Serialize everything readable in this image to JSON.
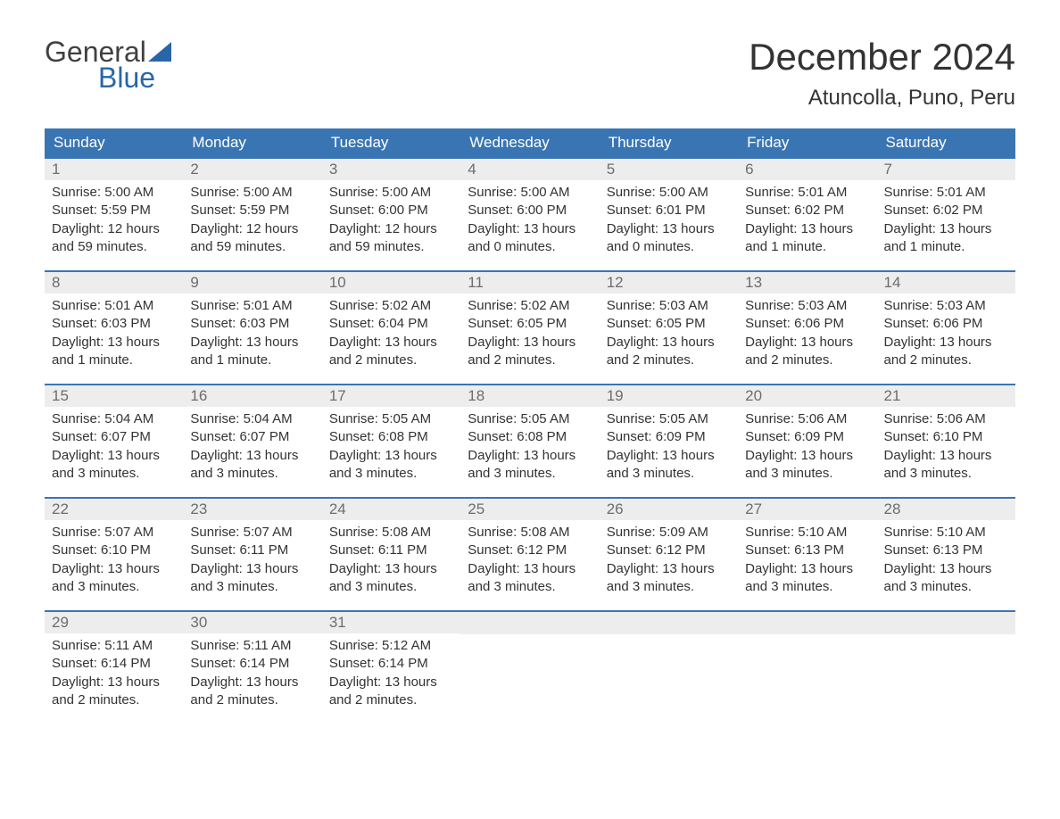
{
  "logo": {
    "text_general": "General",
    "text_blue": "Blue"
  },
  "header": {
    "month_title": "December 2024",
    "location": "Atuncolla, Puno, Peru"
  },
  "colors": {
    "header_bg": "#3a75b3",
    "day_number_bg": "#ededed",
    "text": "#333333",
    "day_number_text": "#6d6d6d",
    "logo_blue": "#2966a8",
    "logo_general": "#404040"
  },
  "weekdays": [
    "Sunday",
    "Monday",
    "Tuesday",
    "Wednesday",
    "Thursday",
    "Friday",
    "Saturday"
  ],
  "weeks": [
    [
      {
        "day": "1",
        "sunrise": "Sunrise: 5:00 AM",
        "sunset": "Sunset: 5:59 PM",
        "daylight1": "Daylight: 12 hours",
        "daylight2": "and 59 minutes."
      },
      {
        "day": "2",
        "sunrise": "Sunrise: 5:00 AM",
        "sunset": "Sunset: 5:59 PM",
        "daylight1": "Daylight: 12 hours",
        "daylight2": "and 59 minutes."
      },
      {
        "day": "3",
        "sunrise": "Sunrise: 5:00 AM",
        "sunset": "Sunset: 6:00 PM",
        "daylight1": "Daylight: 12 hours",
        "daylight2": "and 59 minutes."
      },
      {
        "day": "4",
        "sunrise": "Sunrise: 5:00 AM",
        "sunset": "Sunset: 6:00 PM",
        "daylight1": "Daylight: 13 hours",
        "daylight2": "and 0 minutes."
      },
      {
        "day": "5",
        "sunrise": "Sunrise: 5:00 AM",
        "sunset": "Sunset: 6:01 PM",
        "daylight1": "Daylight: 13 hours",
        "daylight2": "and 0 minutes."
      },
      {
        "day": "6",
        "sunrise": "Sunrise: 5:01 AM",
        "sunset": "Sunset: 6:02 PM",
        "daylight1": "Daylight: 13 hours",
        "daylight2": "and 1 minute."
      },
      {
        "day": "7",
        "sunrise": "Sunrise: 5:01 AM",
        "sunset": "Sunset: 6:02 PM",
        "daylight1": "Daylight: 13 hours",
        "daylight2": "and 1 minute."
      }
    ],
    [
      {
        "day": "8",
        "sunrise": "Sunrise: 5:01 AM",
        "sunset": "Sunset: 6:03 PM",
        "daylight1": "Daylight: 13 hours",
        "daylight2": "and 1 minute."
      },
      {
        "day": "9",
        "sunrise": "Sunrise: 5:01 AM",
        "sunset": "Sunset: 6:03 PM",
        "daylight1": "Daylight: 13 hours",
        "daylight2": "and 1 minute."
      },
      {
        "day": "10",
        "sunrise": "Sunrise: 5:02 AM",
        "sunset": "Sunset: 6:04 PM",
        "daylight1": "Daylight: 13 hours",
        "daylight2": "and 2 minutes."
      },
      {
        "day": "11",
        "sunrise": "Sunrise: 5:02 AM",
        "sunset": "Sunset: 6:05 PM",
        "daylight1": "Daylight: 13 hours",
        "daylight2": "and 2 minutes."
      },
      {
        "day": "12",
        "sunrise": "Sunrise: 5:03 AM",
        "sunset": "Sunset: 6:05 PM",
        "daylight1": "Daylight: 13 hours",
        "daylight2": "and 2 minutes."
      },
      {
        "day": "13",
        "sunrise": "Sunrise: 5:03 AM",
        "sunset": "Sunset: 6:06 PM",
        "daylight1": "Daylight: 13 hours",
        "daylight2": "and 2 minutes."
      },
      {
        "day": "14",
        "sunrise": "Sunrise: 5:03 AM",
        "sunset": "Sunset: 6:06 PM",
        "daylight1": "Daylight: 13 hours",
        "daylight2": "and 2 minutes."
      }
    ],
    [
      {
        "day": "15",
        "sunrise": "Sunrise: 5:04 AM",
        "sunset": "Sunset: 6:07 PM",
        "daylight1": "Daylight: 13 hours",
        "daylight2": "and 3 minutes."
      },
      {
        "day": "16",
        "sunrise": "Sunrise: 5:04 AM",
        "sunset": "Sunset: 6:07 PM",
        "daylight1": "Daylight: 13 hours",
        "daylight2": "and 3 minutes."
      },
      {
        "day": "17",
        "sunrise": "Sunrise: 5:05 AM",
        "sunset": "Sunset: 6:08 PM",
        "daylight1": "Daylight: 13 hours",
        "daylight2": "and 3 minutes."
      },
      {
        "day": "18",
        "sunrise": "Sunrise: 5:05 AM",
        "sunset": "Sunset: 6:08 PM",
        "daylight1": "Daylight: 13 hours",
        "daylight2": "and 3 minutes."
      },
      {
        "day": "19",
        "sunrise": "Sunrise: 5:05 AM",
        "sunset": "Sunset: 6:09 PM",
        "daylight1": "Daylight: 13 hours",
        "daylight2": "and 3 minutes."
      },
      {
        "day": "20",
        "sunrise": "Sunrise: 5:06 AM",
        "sunset": "Sunset: 6:09 PM",
        "daylight1": "Daylight: 13 hours",
        "daylight2": "and 3 minutes."
      },
      {
        "day": "21",
        "sunrise": "Sunrise: 5:06 AM",
        "sunset": "Sunset: 6:10 PM",
        "daylight1": "Daylight: 13 hours",
        "daylight2": "and 3 minutes."
      }
    ],
    [
      {
        "day": "22",
        "sunrise": "Sunrise: 5:07 AM",
        "sunset": "Sunset: 6:10 PM",
        "daylight1": "Daylight: 13 hours",
        "daylight2": "and 3 minutes."
      },
      {
        "day": "23",
        "sunrise": "Sunrise: 5:07 AM",
        "sunset": "Sunset: 6:11 PM",
        "daylight1": "Daylight: 13 hours",
        "daylight2": "and 3 minutes."
      },
      {
        "day": "24",
        "sunrise": "Sunrise: 5:08 AM",
        "sunset": "Sunset: 6:11 PM",
        "daylight1": "Daylight: 13 hours",
        "daylight2": "and 3 minutes."
      },
      {
        "day": "25",
        "sunrise": "Sunrise: 5:08 AM",
        "sunset": "Sunset: 6:12 PM",
        "daylight1": "Daylight: 13 hours",
        "daylight2": "and 3 minutes."
      },
      {
        "day": "26",
        "sunrise": "Sunrise: 5:09 AM",
        "sunset": "Sunset: 6:12 PM",
        "daylight1": "Daylight: 13 hours",
        "daylight2": "and 3 minutes."
      },
      {
        "day": "27",
        "sunrise": "Sunrise: 5:10 AM",
        "sunset": "Sunset: 6:13 PM",
        "daylight1": "Daylight: 13 hours",
        "daylight2": "and 3 minutes."
      },
      {
        "day": "28",
        "sunrise": "Sunrise: 5:10 AM",
        "sunset": "Sunset: 6:13 PM",
        "daylight1": "Daylight: 13 hours",
        "daylight2": "and 3 minutes."
      }
    ],
    [
      {
        "day": "29",
        "sunrise": "Sunrise: 5:11 AM",
        "sunset": "Sunset: 6:14 PM",
        "daylight1": "Daylight: 13 hours",
        "daylight2": "and 2 minutes."
      },
      {
        "day": "30",
        "sunrise": "Sunrise: 5:11 AM",
        "sunset": "Sunset: 6:14 PM",
        "daylight1": "Daylight: 13 hours",
        "daylight2": "and 2 minutes."
      },
      {
        "day": "31",
        "sunrise": "Sunrise: 5:12 AM",
        "sunset": "Sunset: 6:14 PM",
        "daylight1": "Daylight: 13 hours",
        "daylight2": "and 2 minutes."
      },
      null,
      null,
      null,
      null
    ]
  ]
}
